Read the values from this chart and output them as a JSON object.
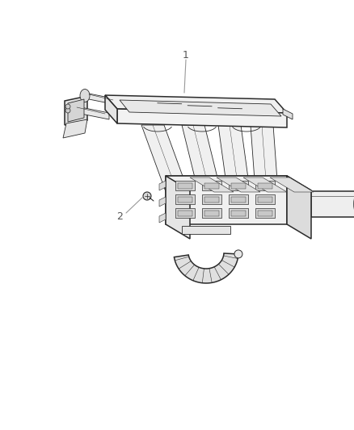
{
  "background_color": "#ffffff",
  "fig_width": 4.38,
  "fig_height": 5.33,
  "dpi": 100,
  "label1": "1",
  "label2": "2",
  "line_color": "#2a2a2a",
  "fill_color": "#f5f5f5",
  "fill_dark": "#e0e0e0",
  "fill_mid": "#ebebeb",
  "text_color": "#555555",
  "leader_color": "#999999",
  "lw_main": 1.1,
  "lw_thin": 0.6,
  "lw_detail": 0.5
}
